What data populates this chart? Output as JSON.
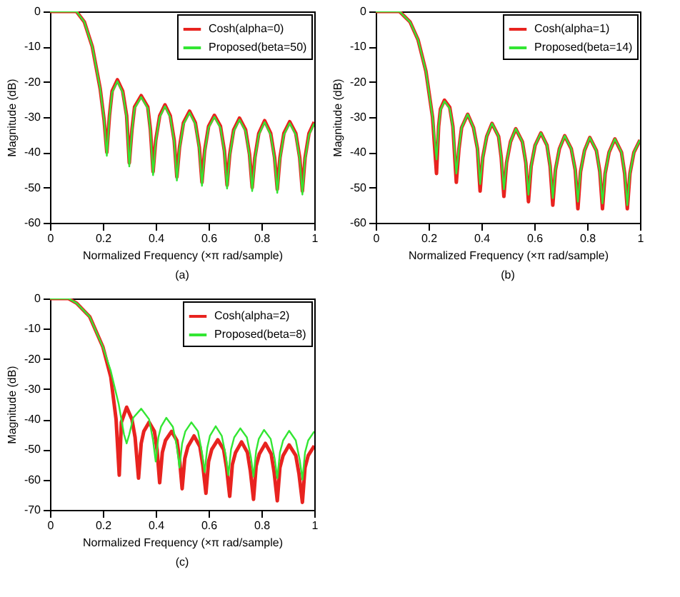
{
  "chart_data": [
    {
      "type": "line",
      "xlabel": "Normalized Frequency  (×π rad/sample)",
      "ylabel": "Magnitude (dB)",
      "annotations": [
        "(a)"
      ],
      "xlim": [
        0,
        1
      ],
      "ylim": [
        -60,
        0
      ],
      "xticks": [
        0,
        0.2,
        0.4,
        0.6,
        0.8,
        1
      ],
      "yticks": [
        -60,
        -50,
        -40,
        -30,
        -20,
        -10,
        0
      ],
      "legend": "top right",
      "series": [
        {
          "name": "Cosh(alpha=0)",
          "color": "#e8231f",
          "x": [
            0,
            0.05,
            0.1,
            0.13,
            0.16,
            0.19,
            0.205,
            0.215,
            0.225,
            0.235,
            0.255,
            0.275,
            0.29,
            0.3,
            0.31,
            0.32,
            0.345,
            0.37,
            0.38,
            0.39,
            0.4,
            0.415,
            0.435,
            0.455,
            0.47,
            0.48,
            0.49,
            0.505,
            0.528,
            0.55,
            0.565,
            0.575,
            0.585,
            0.6,
            0.622,
            0.645,
            0.66,
            0.67,
            0.68,
            0.695,
            0.717,
            0.74,
            0.755,
            0.765,
            0.775,
            0.79,
            0.812,
            0.835,
            0.85,
            0.86,
            0.87,
            0.885,
            0.907,
            0.93,
            0.945,
            0.955,
            0.965,
            0.98,
            1
          ],
          "values": [
            0,
            0,
            0,
            -3,
            -10,
            -22,
            -31,
            -40,
            -29.6,
            -22.6,
            -19.4,
            -22.6,
            -29.6,
            -43,
            -33.6,
            -27.1,
            -23.9,
            -27.1,
            -33.6,
            -45.5,
            -36.6,
            -29.6,
            -26.5,
            -29.6,
            -36.6,
            -47,
            -38.6,
            -31.6,
            -28.3,
            -31.6,
            -38.6,
            -48.5,
            -39.6,
            -32.6,
            -29.5,
            -32.6,
            -39.6,
            -49.3,
            -40.6,
            -33.6,
            -30.3,
            -33.6,
            -40.6,
            -50,
            -41.6,
            -34.6,
            -31,
            -34.6,
            -41.6,
            -50.5,
            -41.6,
            -34.6,
            -31.3,
            -34.6,
            -41.6,
            -51,
            -41.6,
            -34.6,
            -31.4
          ]
        },
        {
          "name": "Proposed(beta=50)",
          "color": "#33e633",
          "x": [
            0,
            0.05,
            0.1,
            0.13,
            0.16,
            0.19,
            0.205,
            0.215,
            0.225,
            0.235,
            0.255,
            0.275,
            0.29,
            0.3,
            0.31,
            0.32,
            0.345,
            0.37,
            0.38,
            0.39,
            0.4,
            0.415,
            0.435,
            0.455,
            0.47,
            0.48,
            0.49,
            0.505,
            0.528,
            0.55,
            0.565,
            0.575,
            0.585,
            0.6,
            0.622,
            0.645,
            0.66,
            0.67,
            0.68,
            0.695,
            0.717,
            0.74,
            0.755,
            0.765,
            0.775,
            0.79,
            0.812,
            0.835,
            0.85,
            0.86,
            0.87,
            0.885,
            0.907,
            0.93,
            0.945,
            0.955,
            0.965,
            0.98,
            1
          ],
          "values": [
            0,
            0,
            0,
            -3,
            -10,
            -22,
            -31,
            -41,
            -30,
            -23,
            -19.8,
            -23,
            -30,
            -44,
            -34,
            -27.5,
            -24.3,
            -27.5,
            -34,
            -46.5,
            -37,
            -30,
            -26.9,
            -30,
            -37,
            -48,
            -39,
            -32,
            -28.7,
            -32,
            -39,
            -49.5,
            -40,
            -33,
            -29.9,
            -33,
            -40,
            -50.3,
            -41,
            -34,
            -30.7,
            -34,
            -41,
            -51,
            -42,
            -35,
            -31.4,
            -35,
            -42,
            -51.5,
            -42,
            -35,
            -31.7,
            -35,
            -42,
            -52,
            -42,
            -35,
            -31.8
          ]
        }
      ]
    },
    {
      "type": "line",
      "xlabel": "Normalized Frequency  (×π rad/sample)",
      "ylabel": "Magnitude (dB)",
      "annotations": [
        "(b)"
      ],
      "xlim": [
        0,
        1
      ],
      "ylim": [
        -60,
        0
      ],
      "xticks": [
        0,
        0.2,
        0.4,
        0.6,
        0.8,
        1
      ],
      "yticks": [
        -60,
        -50,
        -40,
        -30,
        -20,
        -10,
        0
      ],
      "legend": "top right",
      "series": [
        {
          "name": "Cosh(alpha=1)",
          "color": "#e8231f",
          "x": [
            0,
            0.05,
            0.09,
            0.13,
            0.16,
            0.19,
            0.215,
            0.23,
            0.238,
            0.245,
            0.26,
            0.28,
            0.292,
            0.305,
            0.315,
            0.325,
            0.348,
            0.37,
            0.385,
            0.395,
            0.405,
            0.42,
            0.44,
            0.465,
            0.475,
            0.485,
            0.495,
            0.51,
            0.53,
            0.555,
            0.568,
            0.578,
            0.588,
            0.603,
            0.625,
            0.648,
            0.66,
            0.67,
            0.68,
            0.695,
            0.715,
            0.74,
            0.755,
            0.765,
            0.775,
            0.79,
            0.81,
            0.835,
            0.848,
            0.858,
            0.868,
            0.883,
            0.905,
            0.93,
            0.942,
            0.952,
            0.962,
            0.977,
            1
          ],
          "values": [
            0,
            0,
            0,
            -3,
            -8,
            -17,
            -30,
            -46,
            -32.7,
            -27.7,
            -25.2,
            -27.2,
            -32.7,
            -48.5,
            -39,
            -33,
            -29.2,
            -33,
            -39,
            -51,
            -41.5,
            -35.5,
            -31.8,
            -35.5,
            -41.5,
            -52.5,
            -43,
            -37,
            -33.3,
            -37,
            -43,
            -54,
            -44,
            -38,
            -34.5,
            -38,
            -44,
            -55,
            -45,
            -39,
            -35.3,
            -39,
            -45,
            -56,
            -45.5,
            -39.5,
            -35.8,
            -39.5,
            -45.5,
            -56,
            -46,
            -40,
            -36.2,
            -40,
            -46,
            -56,
            -46,
            -40,
            -36.5
          ]
        },
        {
          "name": "Proposed(beta=14)",
          "color": "#33e633",
          "x": [
            0,
            0.05,
            0.09,
            0.13,
            0.16,
            0.19,
            0.215,
            0.23,
            0.238,
            0.245,
            0.26,
            0.28,
            0.292,
            0.305,
            0.315,
            0.325,
            0.348,
            0.37,
            0.385,
            0.395,
            0.405,
            0.42,
            0.44,
            0.465,
            0.475,
            0.485,
            0.495,
            0.51,
            0.53,
            0.555,
            0.568,
            0.578,
            0.588,
            0.603,
            0.625,
            0.648,
            0.66,
            0.67,
            0.68,
            0.695,
            0.715,
            0.74,
            0.755,
            0.765,
            0.775,
            0.79,
            0.81,
            0.835,
            0.848,
            0.858,
            0.868,
            0.883,
            0.905,
            0.93,
            0.942,
            0.952,
            0.962,
            0.977,
            1
          ],
          "values": [
            0,
            0,
            0,
            -3,
            -8,
            -17,
            -30,
            -42,
            -33,
            -28,
            -25.5,
            -27.5,
            -33,
            -46,
            -39,
            -33,
            -29.2,
            -33,
            -39,
            -49,
            -41.5,
            -35.5,
            -31.8,
            -35.5,
            -41.5,
            -50.5,
            -43,
            -37,
            -33.3,
            -37,
            -43,
            -52,
            -44,
            -38,
            -34.5,
            -38,
            -44,
            -53,
            -45,
            -39,
            -35.3,
            -39,
            -45,
            -54,
            -45.5,
            -39.5,
            -35.8,
            -39.5,
            -45.5,
            -54.5,
            -46,
            -40,
            -36.2,
            -40,
            -46,
            -55,
            -46,
            -40,
            -36.5
          ]
        }
      ]
    },
    {
      "type": "line",
      "xlabel": "Normalized Frequency  (×π rad/sample)",
      "ylabel": "Magnitude (dB)",
      "annotations": [
        "(c)"
      ],
      "xlim": [
        0,
        1
      ],
      "ylim": [
        -70,
        0
      ],
      "xticks": [
        0,
        0.2,
        0.4,
        0.6,
        0.8,
        1
      ],
      "yticks": [
        -70,
        -60,
        -50,
        -40,
        -30,
        -20,
        -10,
        0
      ],
      "legend": "top right",
      "series": [
        {
          "name": "Cosh(alpha=2)",
          "color": "#e8231f",
          "x": [
            0,
            0.04,
            0.07,
            0.1,
            0.15,
            0.2,
            0.23,
            0.25,
            0.262,
            0.27,
            0.29,
            0.31,
            0.322,
            0.335,
            0.345,
            0.355,
            0.375,
            0.395,
            0.405,
            0.415,
            0.425,
            0.437,
            0.46,
            0.48,
            0.49,
            0.5,
            0.51,
            0.522,
            0.545,
            0.567,
            0.578,
            0.59,
            0.6,
            0.612,
            0.635,
            0.657,
            0.668,
            0.68,
            0.69,
            0.702,
            0.725,
            0.747,
            0.758,
            0.77,
            0.78,
            0.792,
            0.815,
            0.837,
            0.848,
            0.86,
            0.87,
            0.882,
            0.905,
            0.93,
            0.942,
            0.955,
            0.965,
            0.977,
            1
          ],
          "values": [
            0,
            0,
            0,
            -1.5,
            -6,
            -16,
            -26,
            -40,
            -58.5,
            -41,
            -36,
            -40,
            -46,
            -59.5,
            -48,
            -44,
            -41,
            -44,
            -50,
            -61,
            -51,
            -47,
            -44,
            -47,
            -53,
            -63,
            -53,
            -49,
            -45.5,
            -49,
            -55,
            -64.5,
            -54,
            -50,
            -46.8,
            -50,
            -56,
            -65.5,
            -55,
            -51,
            -47.5,
            -51,
            -57,
            -66.5,
            -55.5,
            -51.5,
            -48,
            -51.5,
            -57.5,
            -67,
            -56,
            -52,
            -48.5,
            -52,
            -58,
            -67.5,
            -56,
            -52,
            -48.8
          ]
        },
        {
          "name": "Proposed(beta=8)",
          "color": "#33e633",
          "x": [
            0,
            0.04,
            0.07,
            0.1,
            0.15,
            0.2,
            0.23,
            0.26,
            0.28,
            0.29,
            0.3,
            0.315,
            0.345,
            0.375,
            0.39,
            0.4,
            0.41,
            0.42,
            0.44,
            0.465,
            0.48,
            0.49,
            0.5,
            0.512,
            0.535,
            0.56,
            0.575,
            0.585,
            0.595,
            0.605,
            0.627,
            0.65,
            0.665,
            0.675,
            0.685,
            0.697,
            0.72,
            0.745,
            0.76,
            0.77,
            0.78,
            0.79,
            0.81,
            0.835,
            0.85,
            0.86,
            0.87,
            0.882,
            0.905,
            0.93,
            0.945,
            0.955,
            0.965,
            0.977,
            1
          ],
          "values": [
            0,
            0,
            0,
            -1.5,
            -6,
            -16,
            -24,
            -35,
            -45,
            -48,
            -45,
            -39.5,
            -36.5,
            -40,
            -47,
            -54,
            -46,
            -42.5,
            -39.5,
            -42.5,
            -49,
            -56,
            -48,
            -44,
            -41,
            -44,
            -51,
            -57.5,
            -49.5,
            -45.5,
            -42.3,
            -45.5,
            -52,
            -58.5,
            -50,
            -46,
            -43,
            -46,
            -52.5,
            -59,
            -50.5,
            -46.5,
            -43.5,
            -46.5,
            -53,
            -59.5,
            -51,
            -47,
            -43.8,
            -47,
            -53.5,
            -60,
            -51,
            -47,
            -44
          ]
        }
      ]
    }
  ]
}
